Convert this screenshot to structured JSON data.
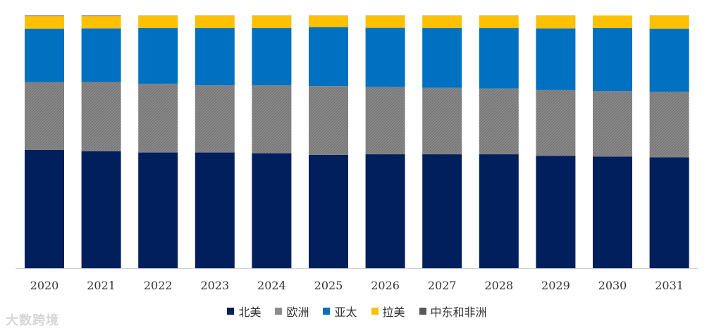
{
  "chart_data": {
    "type": "bar",
    "stacked": true,
    "percent": true,
    "categories": [
      "2020",
      "2021",
      "2022",
      "2023",
      "2024",
      "2025",
      "2026",
      "2027",
      "2028",
      "2029",
      "2030",
      "2031"
    ],
    "ylim": [
      0,
      100
    ],
    "grid": false,
    "legend_position": "bottom",
    "series": [
      {
        "name": "北美",
        "color": "#001F5C",
        "values": [
          46.8,
          46.3,
          45.8,
          45.8,
          45.5,
          44.9,
          45.1,
          45.1,
          45.1,
          44.5,
          44.2,
          43.9
        ]
      },
      {
        "name": "欧洲",
        "color": "#8C8C8C",
        "pattern": "hatch",
        "values": [
          26.8,
          27.4,
          27.2,
          26.6,
          26.9,
          27.2,
          26.6,
          26.3,
          26.0,
          26.0,
          25.9,
          25.9
        ]
      },
      {
        "name": "亚太",
        "color": "#0070C0",
        "values": [
          21.2,
          21.2,
          22.0,
          22.6,
          22.6,
          23.3,
          23.4,
          23.6,
          23.9,
          24.4,
          24.9,
          25.0
        ]
      },
      {
        "name": "拉美",
        "color": "#FFC000",
        "values": [
          4.9,
          4.8,
          4.9,
          4.9,
          4.9,
          4.5,
          4.8,
          4.9,
          4.9,
          5.0,
          5.0,
          5.1
        ]
      },
      {
        "name": "中东和非洲",
        "color": "#595959",
        "values": [
          0.3,
          0.3,
          0.1,
          0.1,
          0.1,
          0.1,
          0.1,
          0.1,
          0.1,
          0.1,
          0.0,
          0.1
        ]
      }
    ]
  },
  "watermark": "大数跨境"
}
